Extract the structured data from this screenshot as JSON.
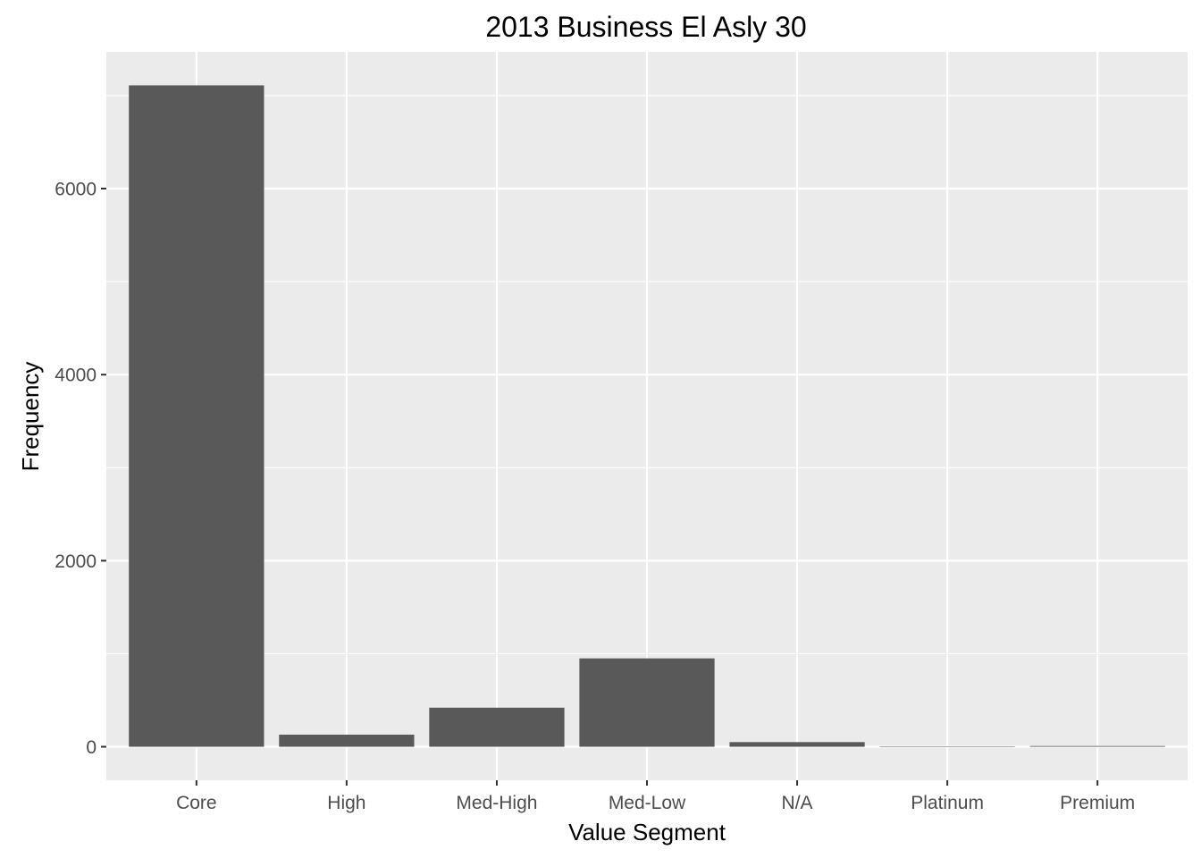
{
  "chart_data": {
    "type": "bar",
    "title": "2013 Business El Asly 30",
    "xlabel": "Value Segment",
    "ylabel": "Frequency",
    "categories": [
      "Core",
      "High",
      "Med-High",
      "Med-Low",
      "N/A",
      "Platinum",
      "Premium"
    ],
    "values": [
      7110,
      130,
      420,
      950,
      50,
      1,
      8
    ],
    "ylim": [
      -360,
      7470
    ],
    "yticks": [
      0,
      2000,
      4000,
      6000
    ],
    "ytick_labels": [
      "0",
      "2000",
      "4000",
      "6000"
    ],
    "grid": true,
    "legend": "none",
    "colors": {
      "panel_background": "#ebebeb",
      "grid": "#ffffff",
      "bar_fill": "#595959",
      "tick_label": "#4d4d4d",
      "tick_mark": "#333333"
    }
  }
}
